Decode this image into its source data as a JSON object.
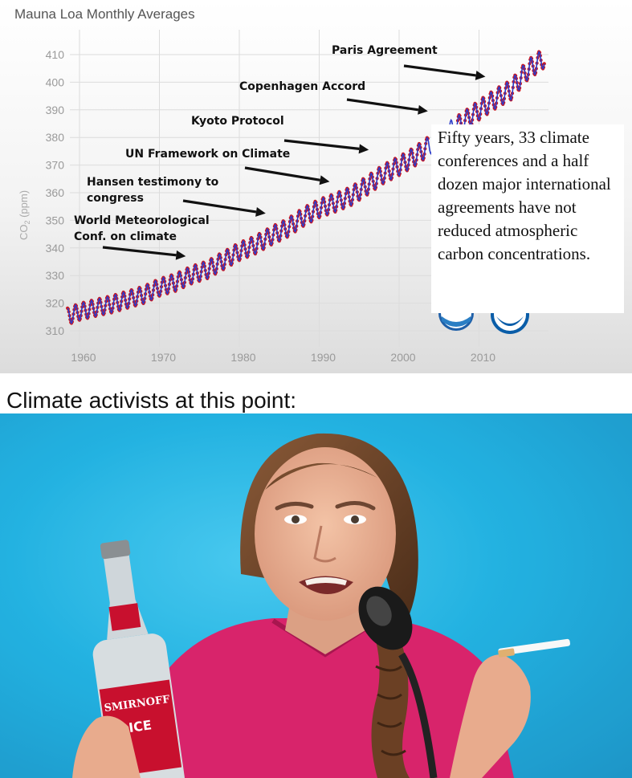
{
  "chart_data": {
    "type": "scatter",
    "title": "Mauna Loa Monthly Averages",
    "xlabel": "",
    "ylabel": "CO2 (ppm)",
    "xlim": [
      1958.3,
      2018.2
    ],
    "ylim": [
      305,
      415
    ],
    "x_ticks": [
      1960,
      1970,
      1980,
      1990,
      2000,
      2010
    ],
    "y_ticks": [
      310,
      320,
      330,
      340,
      350,
      360,
      370,
      380,
      390,
      400,
      410
    ],
    "grid": true,
    "series": [
      {
        "color_points": "#d0141a",
        "color_trend": "#2b3cc9",
        "x": [
          1958.5,
          1960,
          1962,
          1964,
          1966,
          1968,
          1970,
          1972,
          1974,
          1976,
          1978,
          1980,
          1982,
          1984,
          1986,
          1988,
          1990,
          1992,
          1994,
          1996,
          1998,
          2000,
          2002,
          2004,
          2006,
          2008,
          2010,
          2012,
          2014,
          2016,
          2018
        ],
        "y": [
          315.2,
          316.9,
          318.3,
          319.6,
          321.3,
          323.0,
          325.7,
          327.5,
          330.2,
          332.1,
          335.4,
          338.7,
          341.1,
          344.4,
          347.2,
          351.2,
          354.3,
          356.4,
          358.8,
          362.6,
          366.7,
          369.7,
          373.2,
          377.5,
          381.9,
          385.6,
          389.9,
          393.9,
          397.2,
          404.2,
          408.5
        ]
      }
    ],
    "annotations": [
      {
        "label": "World Meteorological\nConf. on climate",
        "arrow_x": 1973.3,
        "arrow_y": 337.0
      },
      {
        "label": "Hansen testimony to\ncongress",
        "arrow_x": 1983.3,
        "arrow_y": 352.5
      },
      {
        "label": "UN Framework on Climate",
        "arrow_x": 1991.3,
        "arrow_y": 364.0
      },
      {
        "label": "Kyoto Protocol",
        "arrow_x": 1996.2,
        "arrow_y": 375.5
      },
      {
        "label": "Copenhagen Accord",
        "arrow_x": 2003.6,
        "arrow_y": 389.5
      },
      {
        "label": "Paris Agreement",
        "arrow_x": 2010.8,
        "arrow_y": 402.0
      }
    ],
    "callout_text": "Fifty years, 33 climate conferences and a half dozen major international agreements  have not reduced atmospheric carbon concentrations."
  },
  "caption": "Climate activists at this point:",
  "colors": {
    "photo_background": "#16aee0",
    "shirt": "#d8246b",
    "bottle_label": "#c8102e"
  },
  "bottle": {
    "brand": "SMIRNOFF",
    "label": "ICE"
  }
}
